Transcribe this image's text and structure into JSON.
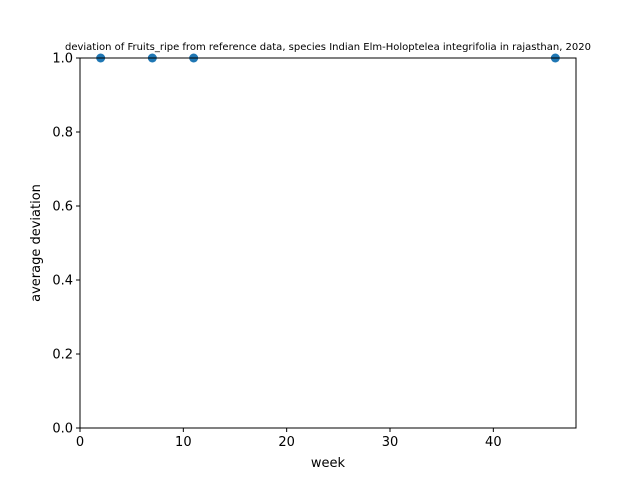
{
  "chart_data": {
    "type": "scatter",
    "title": "deviation of Fruits_ripe from reference data, species Indian Elm-Holoptelea integrifolia in rajasthan, 2020",
    "xlabel": "week",
    "ylabel": "average deviation",
    "xlim": [
      0,
      48
    ],
    "ylim": [
      0.0,
      1.0
    ],
    "xticks": [
      "0",
      "10",
      "20",
      "30",
      "40"
    ],
    "yticks": [
      "0.0",
      "0.2",
      "0.4",
      "0.6",
      "0.8",
      "1.0"
    ],
    "series": [
      {
        "x": [
          2,
          7,
          11,
          46
        ],
        "y": [
          1.0,
          1.0,
          1.0,
          1.0
        ],
        "color": "#1f77b4"
      }
    ],
    "grid": false,
    "legend": "none"
  }
}
